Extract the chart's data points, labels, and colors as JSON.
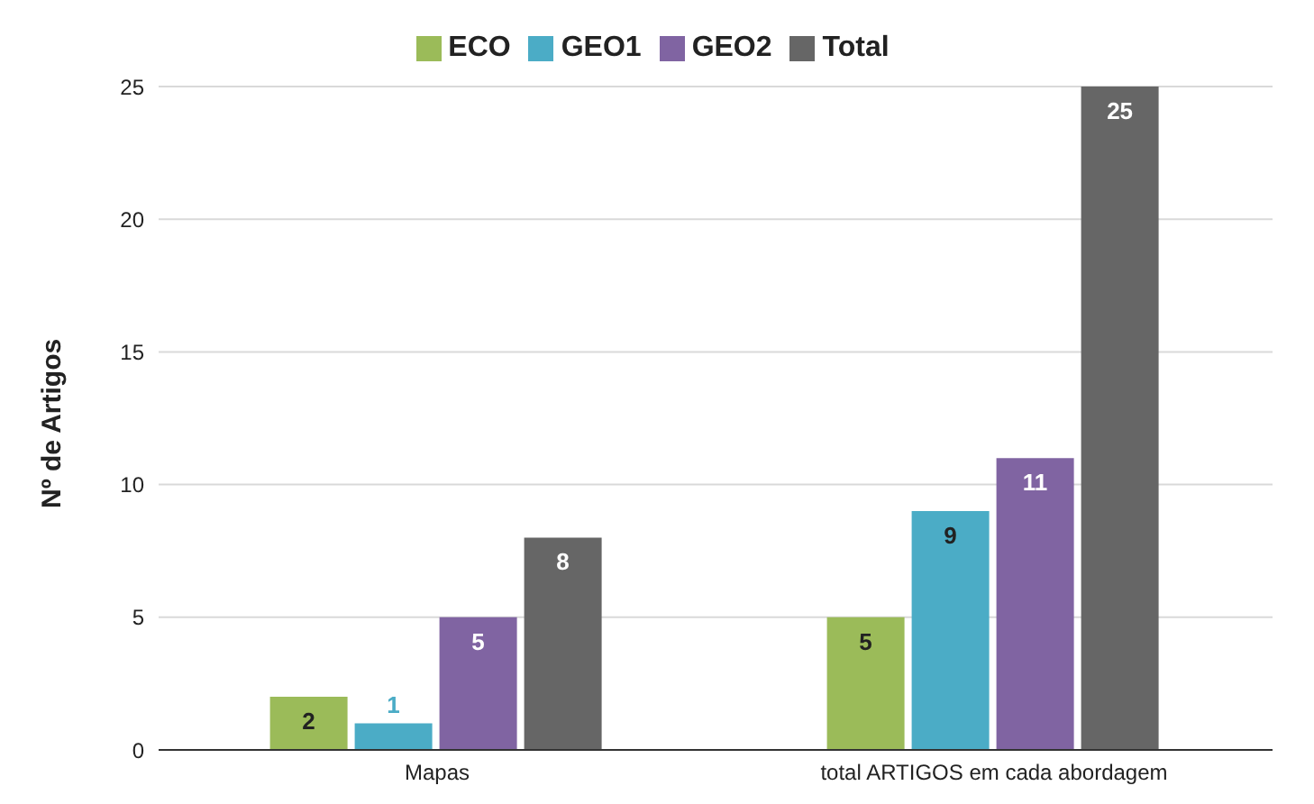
{
  "chart_data": {
    "type": "bar",
    "categories": [
      "Mapas",
      "total ARTIGOS em cada abordagem"
    ],
    "series": [
      {
        "name": "ECO",
        "color": "#9bbb59",
        "values": [
          2,
          5
        ]
      },
      {
        "name": "GEO1",
        "color": "#4bacc6",
        "values": [
          1,
          9
        ]
      },
      {
        "name": "GEO2",
        "color": "#8064a2",
        "values": [
          5,
          11
        ]
      },
      {
        "name": "Total",
        "color": "#666666",
        "values": [
          8,
          25
        ]
      }
    ],
    "ylabel": "Nº de Artigos",
    "ylim": [
      0,
      25
    ],
    "yticks": [
      0,
      5,
      10,
      15,
      20,
      25
    ],
    "grid": "y",
    "legend": "top",
    "data_labels": true
  }
}
